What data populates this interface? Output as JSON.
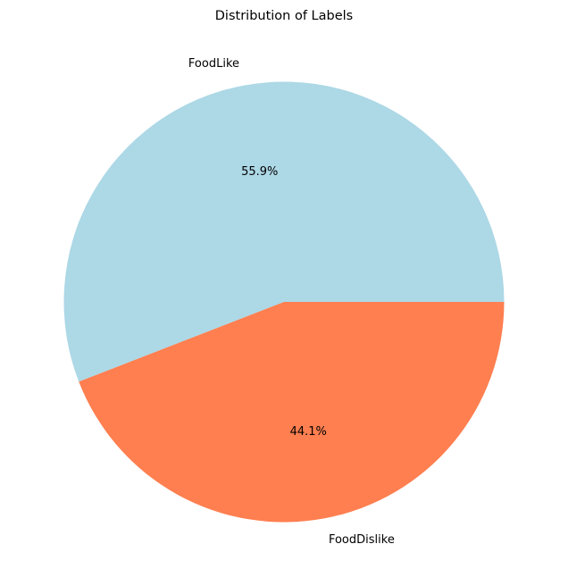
{
  "chart_data": {
    "type": "pie",
    "title": "Distribution of Labels",
    "categories": [
      "FoodLike",
      "FoodDislike"
    ],
    "values": [
      55.9,
      44.1
    ],
    "value_labels": [
      "55.9%",
      "44.1%"
    ],
    "colors": [
      "#add8e6",
      "#ff7f50"
    ],
    "start_angle_deg": 0,
    "direction": "counterclockwise",
    "legend": "none"
  }
}
